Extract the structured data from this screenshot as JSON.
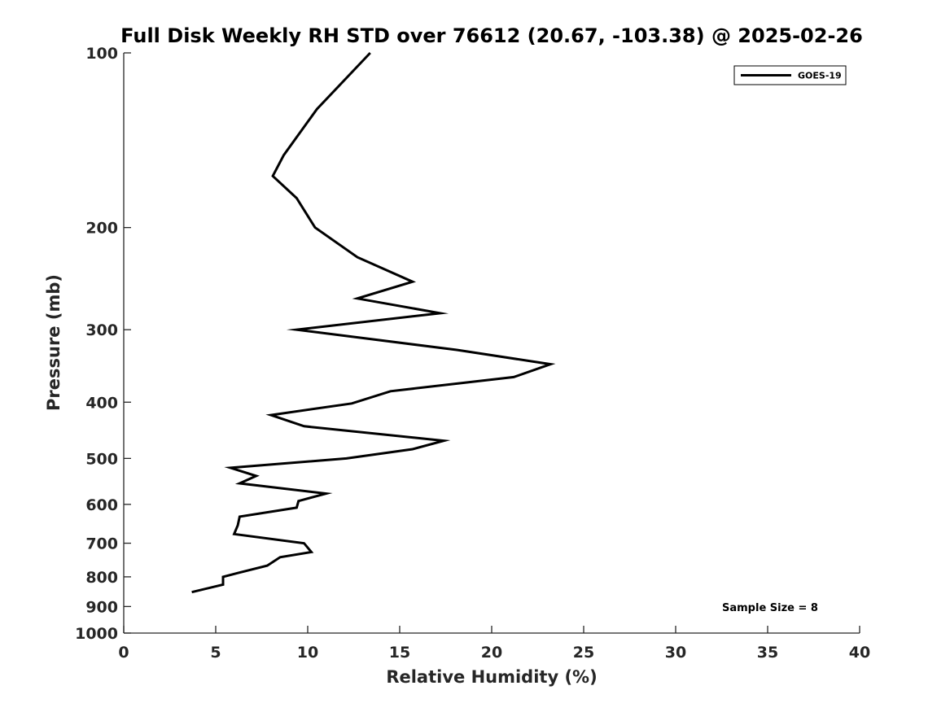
{
  "chart_data": {
    "type": "line",
    "title": "Full Disk Weekly RH STD over 76612 (20.67, -103.38) @ 2025-02-26",
    "xlabel": "Relative Humidity (%)",
    "ylabel": "Pressure (mb)",
    "xlim": [
      0,
      40
    ],
    "ylim": [
      100,
      1000
    ],
    "y_scale": "log",
    "y_reversed": true,
    "x_ticks": [
      0,
      5,
      10,
      15,
      20,
      25,
      30,
      35,
      40
    ],
    "y_ticks": [
      100,
      200,
      300,
      400,
      500,
      600,
      700,
      800,
      900,
      1000
    ],
    "grid": false,
    "legend_position": "top-right",
    "annotation": "Sample Size = 8",
    "series": [
      {
        "name": "GOES-19",
        "color": "#000000",
        "points": [
          [
            13.4,
            100
          ],
          [
            10.5,
            125
          ],
          [
            8.7,
            150
          ],
          [
            8.1,
            163
          ],
          [
            9.4,
            178
          ],
          [
            10.4,
            200
          ],
          [
            12.7,
            225
          ],
          [
            15.7,
            248
          ],
          [
            12.7,
            265
          ],
          [
            17.2,
            281
          ],
          [
            9.4,
            300
          ],
          [
            18.1,
            325
          ],
          [
            23.2,
            344
          ],
          [
            21.2,
            362
          ],
          [
            14.5,
            383
          ],
          [
            12.4,
            402
          ],
          [
            8.0,
            421
          ],
          [
            9.8,
            440
          ],
          [
            17.4,
            466
          ],
          [
            15.7,
            482
          ],
          [
            12.1,
            500
          ],
          [
            5.8,
            519
          ],
          [
            7.2,
            536
          ],
          [
            6.3,
            552
          ],
          [
            11.0,
            575
          ],
          [
            9.5,
            592
          ],
          [
            9.4,
            608
          ],
          [
            6.3,
            630
          ],
          [
            6.2,
            652
          ],
          [
            6.0,
            675
          ],
          [
            9.8,
            700
          ],
          [
            10.2,
            725
          ],
          [
            8.5,
            740
          ],
          [
            7.8,
            765
          ],
          [
            6.2,
            788
          ],
          [
            5.4,
            800
          ],
          [
            5.4,
            825
          ],
          [
            3.7,
            850
          ]
        ]
      }
    ]
  }
}
